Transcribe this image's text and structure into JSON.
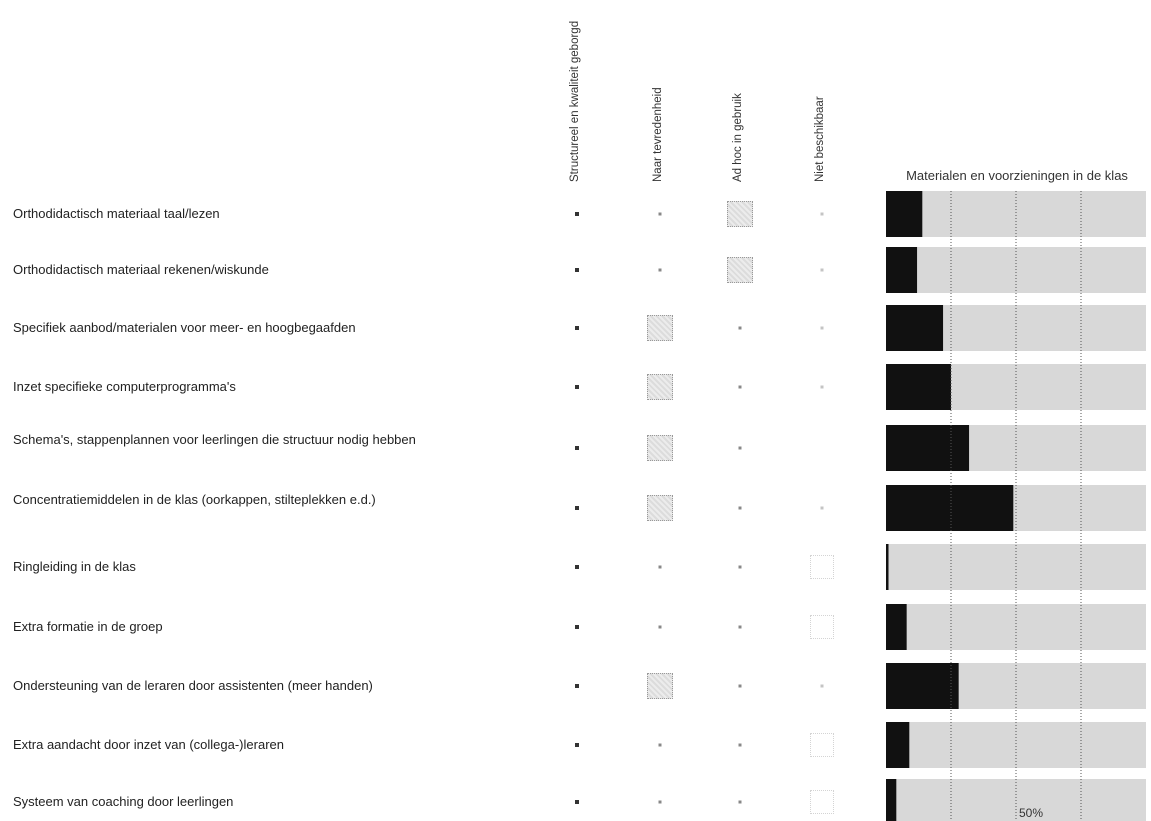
{
  "columns": [
    "Structureel en kwaliteit geborgd",
    "Naar tevredenheid",
    "Ad hoc in gebruik",
    "Niet beschikbaar"
  ],
  "rows": [
    {
      "label": "Orthodidactisch materiaal taal/lezen",
      "status": [
        "square",
        "small",
        "box",
        "faint"
      ]
    },
    {
      "label": "Orthodidactisch materiaal rekenen/wiskunde",
      "status": [
        "square",
        "small",
        "box",
        "faint"
      ]
    },
    {
      "label": "Specifiek aanbod/materialen voor meer- en hoogbegaafden",
      "status": [
        "square",
        "box",
        "small",
        "faint"
      ]
    },
    {
      "label": "Inzet specifieke computerprogramma's",
      "status": [
        "square",
        "box",
        "small",
        "faint"
      ]
    },
    {
      "label": "Schema's, stappenplannen voor leerlingen die structuur nodig hebben",
      "status": [
        "square",
        "box",
        "small",
        "none"
      ]
    },
    {
      "label": "Concentratiemiddelen in de klas (oorkappen, stilteplekken e.d.)",
      "status": [
        "square",
        "box",
        "small",
        "faint"
      ]
    },
    {
      "label": "Ringleiding in de klas",
      "status": [
        "square",
        "small",
        "small",
        "dots"
      ]
    },
    {
      "label": "Extra formatie in de groep",
      "status": [
        "square",
        "small",
        "small",
        "dots"
      ]
    },
    {
      "label": "Ondersteuning van de leraren door assistenten (meer handen)",
      "status": [
        "square",
        "box",
        "small",
        "faint"
      ]
    },
    {
      "label": "Extra aandacht door inzet van (collega-)leraren",
      "status": [
        "square",
        "small",
        "small",
        "dots"
      ]
    },
    {
      "label": "Systeem van coaching door leerlingen",
      "status": [
        "square",
        "small",
        "small",
        "dots"
      ]
    }
  ],
  "chart_data": {
    "type": "bar",
    "orientation": "horizontal",
    "stacked": true,
    "title": "Materialen en voorzieningen in de klas",
    "categories": [
      "Orthodidactisch materiaal taal/lezen",
      "Orthodidactisch materiaal rekenen/wiskunde",
      "Specifiek aanbod/materialen voor meer- en hoogbegaafden",
      "Inzet specifieke computerprogramma's",
      "Schema's, stappenplannen voor leerlingen die structuur nodig hebben",
      "Concentratiemiddelen in de klas (oorkappen, stilteplekken e.d.)",
      "Ringleiding in de klas",
      "Extra formatie in de groep",
      "Ondersteuning van de leraren door assistenten (meer handen)",
      "Extra aandacht door inzet van (collega-)leraren",
      "Systeem van coaching door leerlingen"
    ],
    "series": [
      {
        "values": [
          14,
          12,
          22,
          25,
          32,
          49,
          1,
          8,
          28,
          9,
          4
        ],
        "color": "#111111"
      },
      {
        "values": [
          86,
          88,
          78,
          75,
          68,
          51,
          99,
          92,
          72,
          91,
          96
        ],
        "color": "#d8d8d8"
      }
    ],
    "xlim": [
      0,
      100
    ],
    "grid": true,
    "annotation": "50%"
  },
  "colors": {
    "dark_bar": "#111111",
    "light_bar": "#d8d8d8",
    "grid": "#555555"
  }
}
